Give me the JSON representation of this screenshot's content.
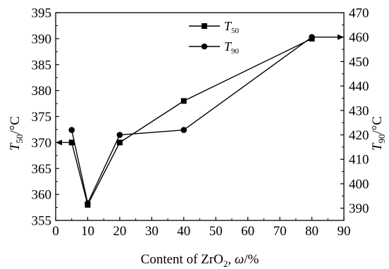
{
  "chart_data": {
    "type": "line",
    "x": [
      5,
      10,
      20,
      40,
      80
    ],
    "xlim": [
      0,
      90
    ],
    "x_ticks": [
      "0",
      "10",
      "20",
      "30",
      "40",
      "50",
      "60",
      "70",
      "80",
      "90"
    ],
    "xlabel": {
      "prefix": "Content of ZrO",
      "sub": "2",
      "suffix": ", ",
      "italic": "ω",
      "unit": "/%"
    },
    "left_axis": {
      "label_main": "T",
      "label_sub": "50",
      "label_unit": "/°C",
      "ylim": [
        355,
        395
      ],
      "ticks": [
        "355",
        "360",
        "365",
        "370",
        "375",
        "380",
        "385",
        "390",
        "395"
      ]
    },
    "right_axis": {
      "label_main": "T",
      "label_sub": "90",
      "label_unit": "/°C",
      "ylim": [
        385,
        470
      ],
      "ticks": [
        "390",
        "400",
        "410",
        "420",
        "430",
        "440",
        "450",
        "460",
        "470"
      ]
    },
    "series": [
      {
        "name_main": "T",
        "name_sub": "50",
        "axis": "left",
        "marker": "square",
        "values": [
          370,
          358,
          370,
          378,
          390
        ]
      },
      {
        "name_main": "T",
        "name_sub": "90",
        "axis": "right",
        "marker": "circle",
        "values": [
          422,
          392,
          420,
          422,
          460
        ]
      }
    ],
    "legend_position": "top-center",
    "grid": false,
    "axis_arrows": "left at y=370 (T50), right at y=460 (T90)",
    "colors": {
      "line": "#000000"
    }
  }
}
